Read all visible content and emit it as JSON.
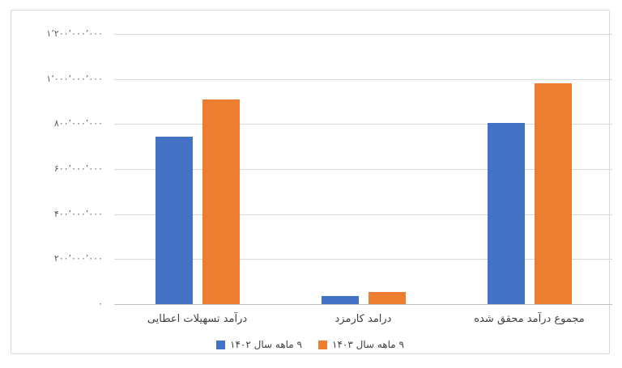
{
  "chart_data": {
    "type": "bar",
    "title": "",
    "xlabel": "",
    "ylabel": "",
    "direction": "rtl",
    "grid": true,
    "legend_position": "bottom",
    "categories": [
      "درآمد تسهیلات اعطایی",
      "درامد کارمزد",
      "مجموع درآمد محقق شده"
    ],
    "series": [
      {
        "name": "۹ ماهه سال ۱۴۰۲",
        "color": "#4472C4",
        "values": [
          745000000,
          37000000,
          805000000
        ]
      },
      {
        "name": "۹ ماهه سال ۱۴۰۳",
        "color": "#ED7D31",
        "values": [
          910000000,
          53000000,
          980000000
        ]
      }
    ],
    "y_axis": {
      "min": 0,
      "max": 1200000000,
      "step": 200000000,
      "tick_labels": [
        "۰",
        "۲۰۰٬۰۰۰٬۰۰۰",
        "۴۰۰٬۰۰۰٬۰۰۰",
        "۶۰۰٬۰۰۰٬۰۰۰",
        "۸۰۰٬۰۰۰٬۰۰۰",
        "۱٬۰۰۰٬۰۰۰٬۰۰۰",
        "۱٬۲۰۰٬۰۰۰٬۰۰۰"
      ]
    },
    "colors": {
      "gridline": "#d9d9d9",
      "axis_line": "#bfbfbf",
      "tick_text": "#595959",
      "label_text": "#404040",
      "chart_border": "#d9d9d9",
      "background": "#ffffff"
    }
  }
}
